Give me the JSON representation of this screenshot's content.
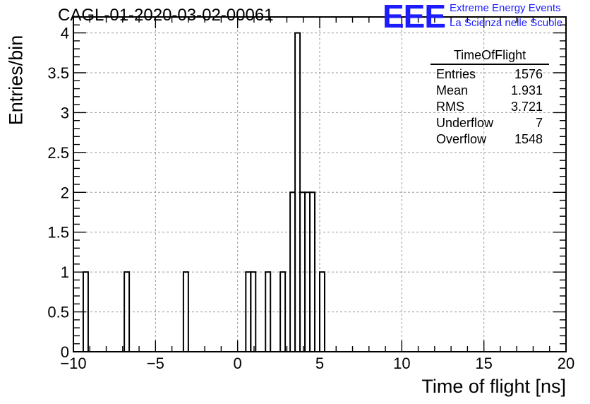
{
  "header": {
    "title": "CAGL-01-2020-03-02-00061",
    "logo": "EEE",
    "tagline_1": "Extreme Energy Events",
    "tagline_2": "La Scienza nelle Scuole"
  },
  "stats_box": {
    "title": "TimeOfFlight",
    "rows": [
      {
        "label": "Entries",
        "value": "1576"
      },
      {
        "label": "Mean",
        "value": "1.931"
      },
      {
        "label": "RMS",
        "value": "3.721"
      },
      {
        "label": "Underflow",
        "value": "7"
      },
      {
        "label": "Overflow",
        "value": "1548"
      }
    ]
  },
  "chart_data": {
    "type": "bar",
    "subtype": "step-histogram",
    "title": "CAGL-01-2020-03-02-00061",
    "xlabel": "Time of flight [ns]",
    "ylabel": "Entries/bin",
    "xlim": [
      -10,
      20
    ],
    "ylim": [
      0,
      4.2
    ],
    "bin_width": 0.3,
    "x_ticks": [
      "−10",
      "−5",
      "0",
      "5",
      "10",
      "15",
      "20"
    ],
    "x_tick_values": [
      -10,
      -5,
      0,
      5,
      10,
      15,
      20
    ],
    "y_ticks": [
      "0",
      "0.5",
      "1",
      "1.5",
      "2",
      "2.5",
      "3",
      "3.5",
      "4"
    ],
    "y_tick_values": [
      0,
      0.5,
      1,
      1.5,
      2,
      2.5,
      3,
      3.5,
      4
    ],
    "grid": true,
    "bins": [
      {
        "x0": -9.4,
        "value": 1
      },
      {
        "x0": -6.9,
        "value": 1
      },
      {
        "x0": -3.3,
        "value": 1
      },
      {
        "x0": 0.5,
        "value": 1
      },
      {
        "x0": 0.8,
        "value": 1
      },
      {
        "x0": 1.7,
        "value": 1
      },
      {
        "x0": 2.6,
        "value": 1
      },
      {
        "x0": 3.2,
        "value": 2
      },
      {
        "x0": 3.5,
        "value": 4
      },
      {
        "x0": 3.8,
        "value": 2
      },
      {
        "x0": 4.1,
        "value": 2
      },
      {
        "x0": 4.4,
        "value": 2
      },
      {
        "x0": 5.0,
        "value": 1
      }
    ]
  }
}
